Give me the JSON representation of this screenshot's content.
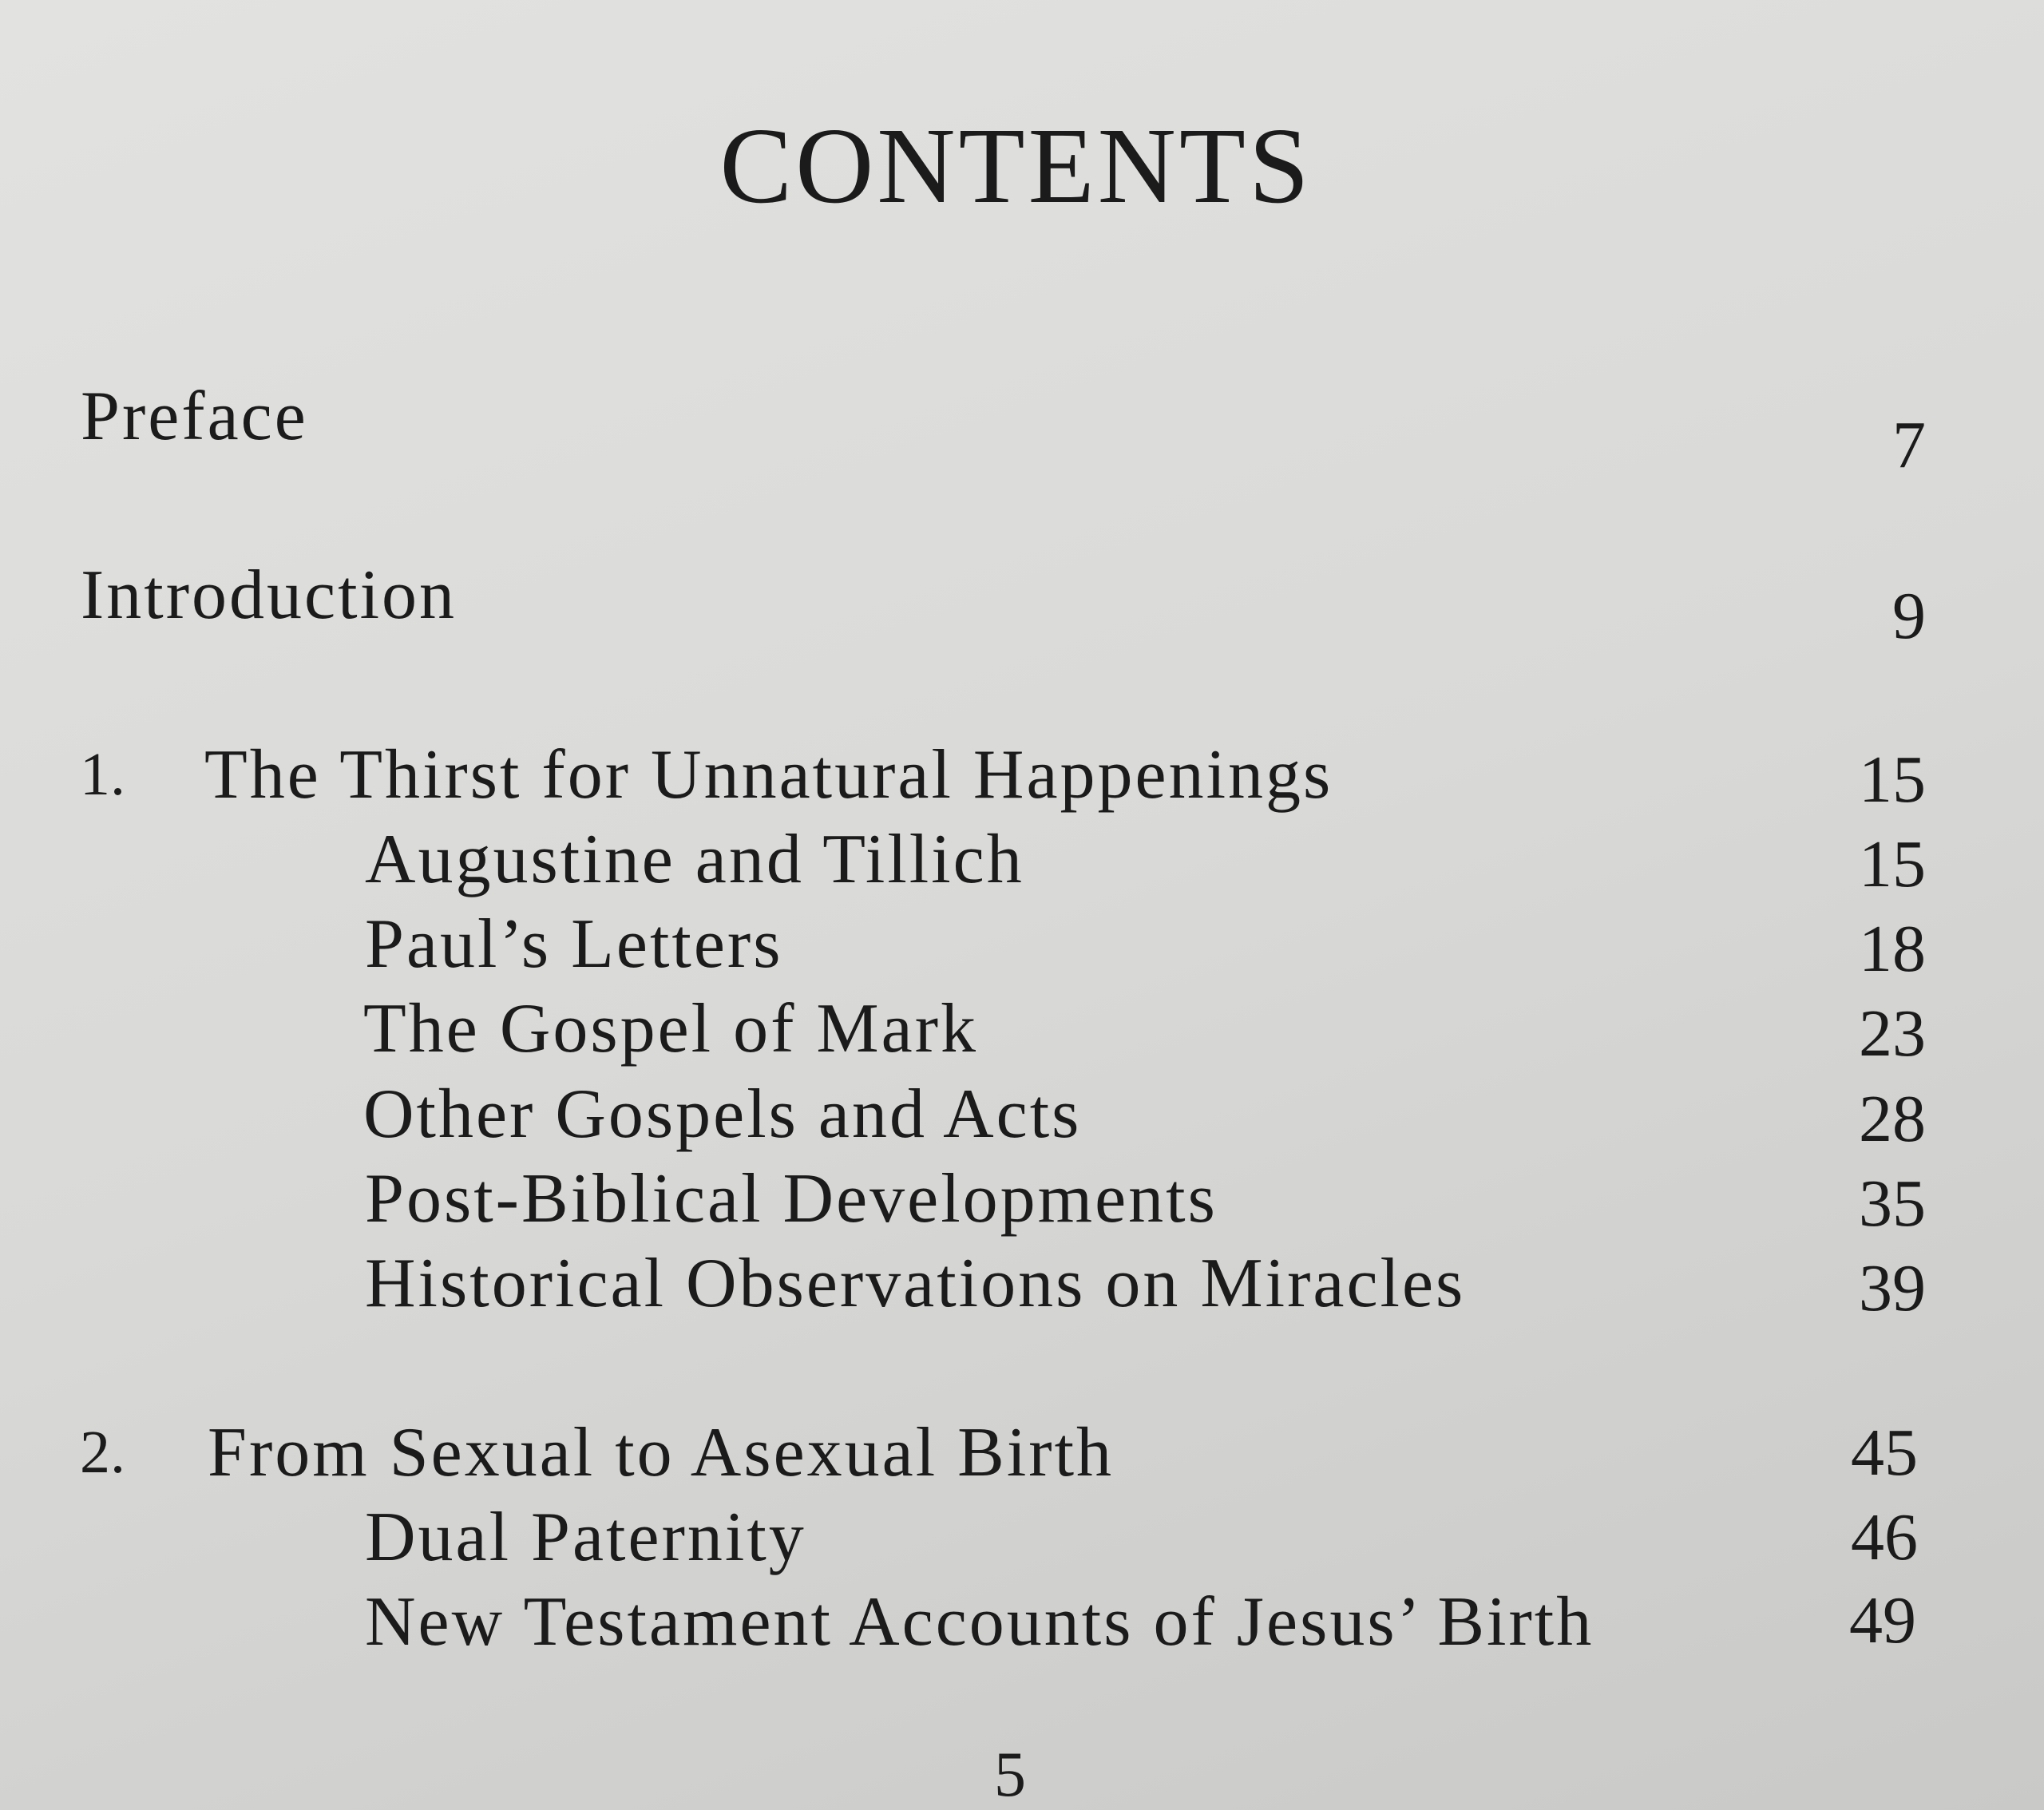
{
  "title": "CONTENTS",
  "entries": [
    {
      "label": "Preface",
      "page": "7"
    },
    {
      "label": "Introduction",
      "page": "9"
    }
  ],
  "chapters": [
    {
      "number": "1.",
      "title": "The Thirst for Unnatural Happenings",
      "page": "15",
      "sections": [
        {
          "label": "Augustine and Tillich",
          "page": "15"
        },
        {
          "label": "Paul’s Letters",
          "page": "18"
        },
        {
          "label": "The Gospel of Mark",
          "page": "23"
        },
        {
          "label": "Other Gospels and Acts",
          "page": "28"
        },
        {
          "label": "Post-Biblical Developments",
          "page": "35"
        },
        {
          "label": "Historical Observations on Miracles",
          "page": "39"
        }
      ]
    },
    {
      "number": "2.",
      "title": "From Sexual to Asexual Birth",
      "page": "45",
      "sections": [
        {
          "label": "Dual Paternity",
          "page": "46"
        },
        {
          "label": "New Testament Accounts of Jesus’ Birth",
          "page": "49"
        }
      ]
    }
  ],
  "folio": "5"
}
